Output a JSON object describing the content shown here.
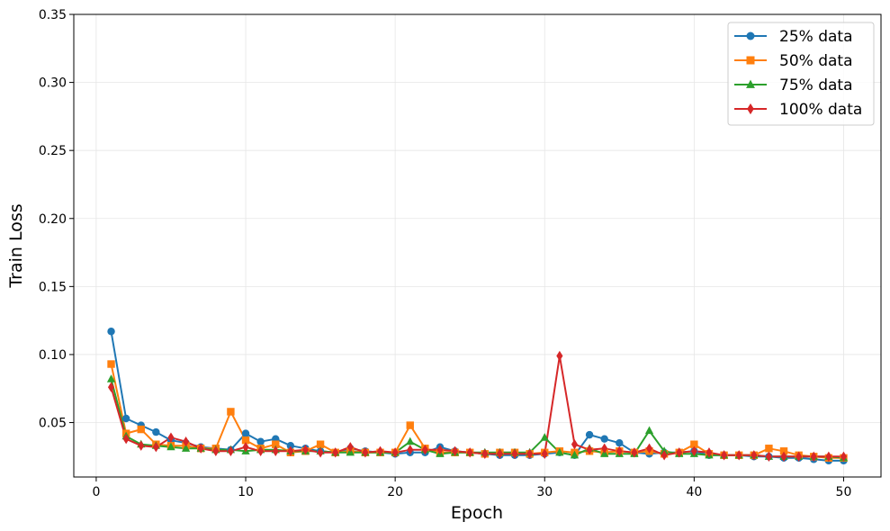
{
  "chart_data": {
    "type": "line",
    "title": "",
    "xlabel": "Epoch",
    "ylabel": "Train Loss",
    "xlim": [
      -1.5,
      52.5
    ],
    "ylim": [
      0.01,
      0.35
    ],
    "x_ticks": [
      0,
      10,
      20,
      30,
      40,
      50
    ],
    "y_ticks": [
      0.05,
      0.1,
      0.15,
      0.2,
      0.25,
      0.3,
      0.35
    ],
    "x_tick_labels": [
      "0",
      "10",
      "20",
      "30",
      "40",
      "50"
    ],
    "y_tick_labels": [
      "0.05",
      "0.10",
      "0.15",
      "0.20",
      "0.25",
      "0.30",
      "0.35"
    ],
    "grid": true,
    "legend_position": "top-right",
    "x": [
      1,
      2,
      3,
      4,
      5,
      6,
      7,
      8,
      9,
      10,
      11,
      12,
      13,
      14,
      15,
      16,
      17,
      18,
      19,
      20,
      21,
      22,
      23,
      24,
      25,
      26,
      27,
      28,
      29,
      30,
      31,
      32,
      33,
      34,
      35,
      36,
      37,
      38,
      39,
      40,
      41,
      42,
      43,
      44,
      45,
      46,
      47,
      48,
      49,
      50
    ],
    "series": [
      {
        "name": "25% data",
        "color": "#1f77b4",
        "marker": "circle",
        "values": [
          0.117,
          0.053,
          0.048,
          0.043,
          0.037,
          0.035,
          0.032,
          0.031,
          0.03,
          0.042,
          0.036,
          0.038,
          0.033,
          0.031,
          0.029,
          0.028,
          0.031,
          0.029,
          0.028,
          0.027,
          0.028,
          0.028,
          0.032,
          0.029,
          0.028,
          0.027,
          0.026,
          0.026,
          0.026,
          0.027,
          0.028,
          0.026,
          0.041,
          0.038,
          0.035,
          0.028,
          0.027,
          0.028,
          0.028,
          0.029,
          0.026,
          0.026,
          0.026,
          0.025,
          0.025,
          0.024,
          0.024,
          0.023,
          0.022,
          0.022
        ]
      },
      {
        "name": "50% data",
        "color": "#ff7f0e",
        "marker": "square",
        "values": [
          0.093,
          0.042,
          0.045,
          0.034,
          0.033,
          0.033,
          0.031,
          0.031,
          0.058,
          0.037,
          0.031,
          0.034,
          0.028,
          0.029,
          0.034,
          0.028,
          0.029,
          0.028,
          0.028,
          0.028,
          0.048,
          0.031,
          0.028,
          0.028,
          0.028,
          0.027,
          0.028,
          0.028,
          0.027,
          0.028,
          0.029,
          0.028,
          0.029,
          0.028,
          0.029,
          0.028,
          0.029,
          0.027,
          0.028,
          0.034,
          0.027,
          0.026,
          0.026,
          0.026,
          0.031,
          0.029,
          0.026,
          0.025,
          0.024,
          0.024
        ]
      },
      {
        "name": "75% data",
        "color": "#2ca02c",
        "marker": "triangle",
        "values": [
          0.082,
          0.04,
          0.034,
          0.033,
          0.032,
          0.031,
          0.031,
          0.03,
          0.03,
          0.029,
          0.03,
          0.03,
          0.029,
          0.029,
          0.029,
          0.028,
          0.028,
          0.028,
          0.028,
          0.028,
          0.036,
          0.03,
          0.027,
          0.028,
          0.028,
          0.028,
          0.028,
          0.028,
          0.028,
          0.039,
          0.028,
          0.026,
          0.031,
          0.027,
          0.027,
          0.027,
          0.044,
          0.029,
          0.027,
          0.027,
          0.026,
          0.026,
          0.026,
          0.026,
          0.025,
          0.025,
          0.025,
          0.025,
          0.025,
          0.024
        ]
      },
      {
        "name": "100% data",
        "color": "#d62728",
        "marker": "diamond",
        "values": [
          0.076,
          0.038,
          0.033,
          0.032,
          0.039,
          0.036,
          0.031,
          0.029,
          0.029,
          0.032,
          0.029,
          0.029,
          0.029,
          0.03,
          0.028,
          0.028,
          0.032,
          0.028,
          0.029,
          0.028,
          0.03,
          0.03,
          0.03,
          0.029,
          0.028,
          0.027,
          0.027,
          0.027,
          0.027,
          0.027,
          0.099,
          0.034,
          0.03,
          0.031,
          0.029,
          0.028,
          0.031,
          0.026,
          0.028,
          0.029,
          0.028,
          0.026,
          0.026,
          0.026,
          0.025,
          0.025,
          0.025,
          0.025,
          0.025,
          0.025
        ]
      }
    ]
  }
}
